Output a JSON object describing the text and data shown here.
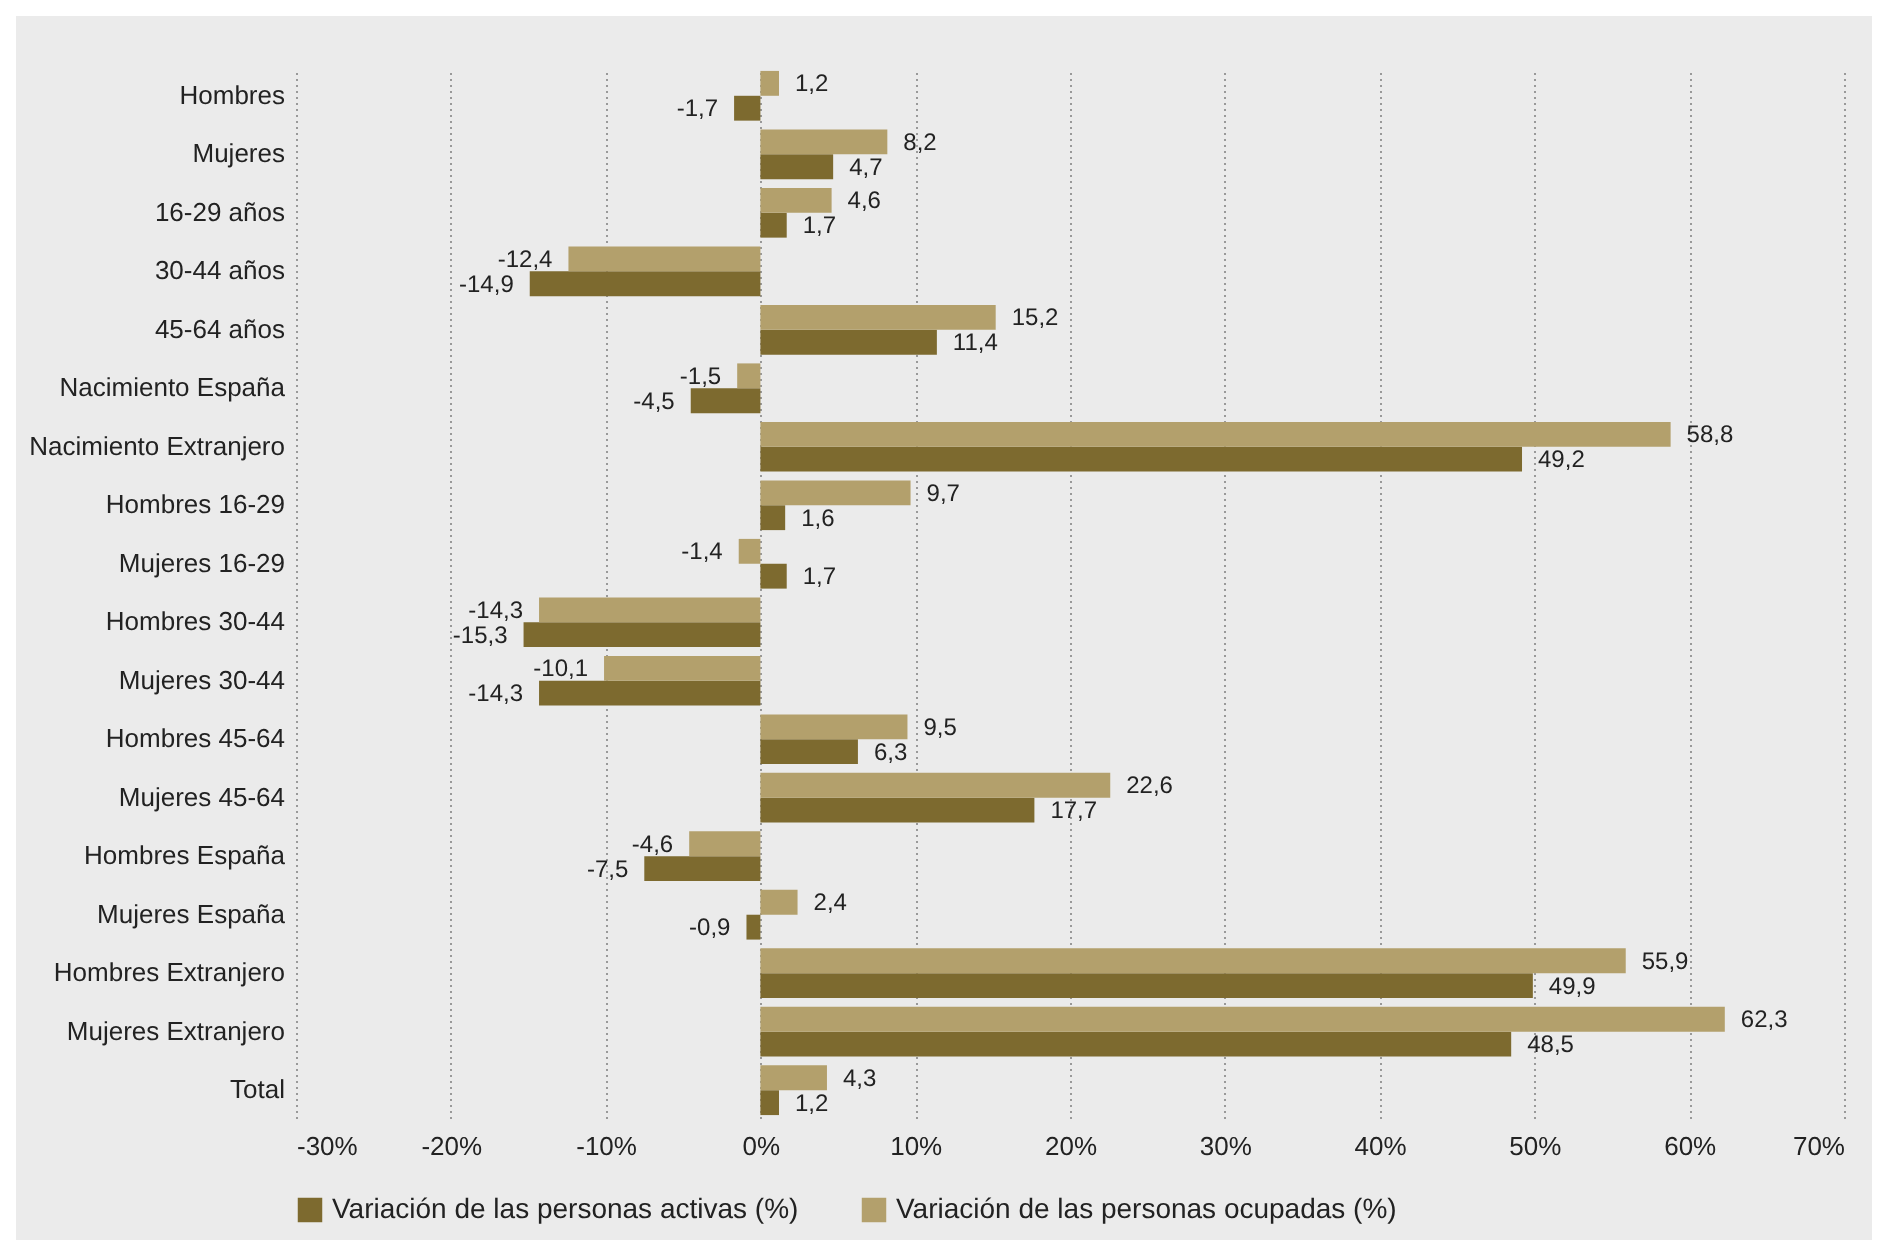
{
  "chart_data": {
    "type": "bar",
    "orientation": "horizontal",
    "categories": [
      "Hombres",
      "Mujeres",
      "16-29 años",
      "30-44 años",
      "45-64 años",
      "Nacimiento España",
      "Nacimiento Extranjero",
      "Hombres 16-29",
      "Mujeres 16-29",
      "Hombres 30-44",
      "Mujeres 30-44",
      "Hombres 45-64",
      "Mujeres 45-64",
      "Hombres España",
      "Mujeres España",
      "Hombres Extranjero",
      "Mujeres Extranjero",
      "Total"
    ],
    "series": [
      {
        "name": "Variación de las personas activas (%)",
        "color": "#7d6a2f",
        "values": [
          -1.7,
          4.7,
          1.7,
          -14.9,
          11.4,
          -4.5,
          49.2,
          1.6,
          1.7,
          -15.3,
          -14.3,
          6.3,
          17.7,
          -7.5,
          -0.9,
          49.9,
          48.5,
          1.2
        ],
        "value_labels": [
          "-1,7",
          "4,7",
          "1,7",
          "-14,9",
          "11,4",
          "-4,5",
          "49,2",
          "1,6",
          "1,7",
          "-15,3",
          "-14,3",
          "6,3",
          "17,7",
          "-7,5",
          "-0,9",
          "49,9",
          "48,5",
          "1,2"
        ]
      },
      {
        "name": "Variación de las personas ocupadas (%)",
        "color": "#b3a06c",
        "values": [
          1.2,
          8.2,
          4.6,
          -12.4,
          15.2,
          -1.5,
          58.8,
          9.7,
          -1.4,
          -14.3,
          -10.1,
          9.5,
          22.6,
          -4.6,
          2.4,
          55.9,
          62.3,
          4.3
        ],
        "value_labels": [
          "1,2",
          "8,2",
          "4,6",
          "-12,4",
          "15,2",
          "-1,5",
          "58,8",
          "9,7",
          "-1,4",
          "-14,3",
          "-10,1",
          "9,5",
          "22,6",
          "-4,6",
          "2,4",
          "55,9",
          "62,3",
          "4,3"
        ]
      }
    ],
    "xlim": [
      -30,
      70
    ],
    "xticks": [
      {
        "value": -30,
        "label": "-30%"
      },
      {
        "value": -20,
        "label": "-20%"
      },
      {
        "value": -10,
        "label": "-10%"
      },
      {
        "value": 0,
        "label": "0%"
      },
      {
        "value": 10,
        "label": "10%"
      },
      {
        "value": 20,
        "label": "20%"
      },
      {
        "value": 30,
        "label": "30%"
      },
      {
        "value": 40,
        "label": "40%"
      },
      {
        "value": 50,
        "label": "50%"
      },
      {
        "value": 60,
        "label": "60%"
      },
      {
        "value": 70,
        "label": "70%"
      }
    ],
    "grid": "x",
    "legend": "bottom"
  }
}
